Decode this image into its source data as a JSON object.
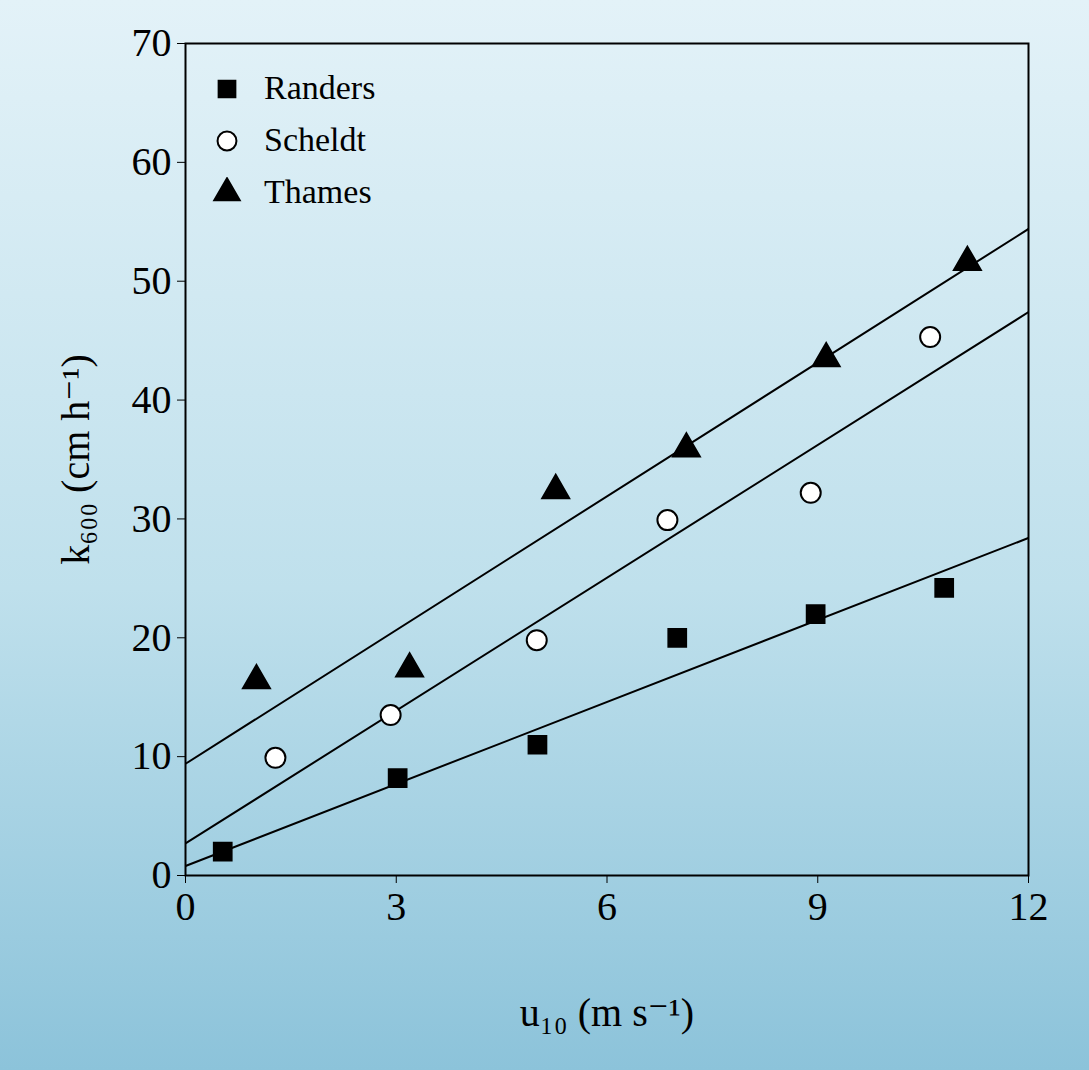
{
  "chart_data": {
    "type": "scatter",
    "x_label": "u₁₀ (m s⁻¹)",
    "y_label": "k₆₀₀ (cm h⁻¹)",
    "xlim": [
      0,
      12
    ],
    "ylim": [
      0,
      70
    ],
    "xticks": [
      0,
      3,
      6,
      9,
      12
    ],
    "yticks": [
      0,
      10,
      20,
      30,
      40,
      50,
      60,
      70
    ],
    "legend": "top-left",
    "series": [
      {
        "name": "Randers",
        "color": "#000000",
        "marker": "square",
        "x": [
          0.53,
          3.02,
          5.01,
          7.0,
          8.97,
          10.8
        ],
        "values": [
          2.0,
          8.2,
          11.0,
          20.0,
          22.0,
          24.2
        ],
        "fit": {
          "x": [
            0,
            12
          ],
          "values": [
            0.8,
            28.4
          ]
        }
      },
      {
        "name": "Scheldt",
        "color": "#000000",
        "marker": "circle_open",
        "x": [
          1.28,
          2.92,
          5.0,
          6.86,
          8.9,
          10.6
        ],
        "values": [
          9.9,
          13.5,
          19.8,
          29.9,
          32.2,
          45.3
        ],
        "fit": {
          "x": [
            0,
            12
          ],
          "values": [
            2.7,
            47.4
          ]
        }
      },
      {
        "name": "Thames",
        "color": "#000000",
        "marker": "triangle",
        "x": [
          1.01,
          3.19,
          5.27,
          7.13,
          9.12,
          11.13
        ],
        "values": [
          16.4,
          17.4,
          32.4,
          35.9,
          43.5,
          51.6
        ],
        "fit": {
          "x": [
            0,
            12
          ],
          "values": [
            9.4,
            54.4
          ]
        }
      }
    ]
  }
}
